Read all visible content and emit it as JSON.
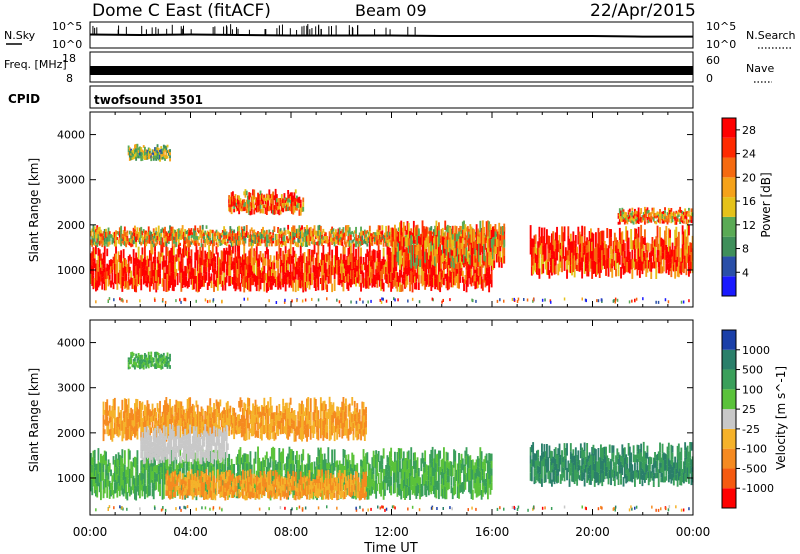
{
  "header": {
    "title": "Dome C East (fitACF)",
    "beam": "Beam 09",
    "date": "22/Apr/2015"
  },
  "colors": {
    "power_scale": [
      "#1a1aff",
      "#2a4fa8",
      "#3f8f5a",
      "#5aaa55",
      "#e5c21a",
      "#f5a21a",
      "#f56a10",
      "#ff2a00",
      "#ff0000"
    ],
    "velocity_scale": [
      "#ff0000",
      "#f55a10",
      "#f58a20",
      "#f5b22a",
      "#c8c8c8",
      "#5ac23a",
      "#3a9f5a",
      "#2a7f6a",
      "#1a3fa8"
    ],
    "gray_flag": "#c8c8c8"
  },
  "chart_data": [
    {
      "type": "line",
      "name": "noise-panel",
      "left_label": "N.Sky",
      "left_ticks": [
        "10^5",
        "10^0"
      ],
      "right_label": "N.Search",
      "right_ticks": [
        "10^5",
        "10^0"
      ],
      "series": [
        {
          "name": "N.Sky",
          "values": [
            2.6,
            2.5,
            2.6,
            2.5,
            2.4,
            2.4,
            2.4,
            2.3,
            2.3,
            2.3,
            2.3,
            2.2,
            2.2
          ]
        }
      ],
      "x": [
        0,
        2,
        4,
        6,
        8,
        10,
        12,
        14,
        16,
        18,
        20,
        22,
        24
      ],
      "ylim": [
        0,
        5
      ]
    },
    {
      "type": "line",
      "name": "freq-nave-panel",
      "left_label": "Freq. [MHz]",
      "left_ticks": [
        "18",
        "8"
      ],
      "right_label": "Nave",
      "right_ticks": [
        "60",
        "0"
      ],
      "series": [
        {
          "name": "Freq",
          "values": [
            10.4,
            10.4,
            10.4,
            10.4,
            10.4,
            10.4,
            10.4,
            10.4,
            10.4,
            10.4,
            10.4,
            10.4,
            10.4
          ]
        }
      ],
      "x": [
        0,
        2,
        4,
        6,
        8,
        10,
        12,
        14,
        16,
        18,
        20,
        22,
        24
      ],
      "ylim": [
        8,
        18
      ]
    },
    {
      "type": "heatmap",
      "name": "cpid-panel",
      "label": "CPID",
      "program": "twofsound 3501"
    },
    {
      "type": "heatmap",
      "name": "power-panel",
      "ylabel": "Slant Range [km]",
      "xlabel": "Time UT",
      "xlim": [
        0,
        24
      ],
      "ylim": [
        180,
        4500
      ],
      "x_ticks": [
        "00:00",
        "04:00",
        "08:00",
        "12:00",
        "16:00",
        "20:00",
        "00:00"
      ],
      "y_ticks": [
        1000,
        2000,
        3000,
        4000
      ],
      "colorbar_label": "Power [dB]",
      "colorbar_ticks": [
        4,
        8,
        12,
        16,
        20,
        24,
        28
      ],
      "colorbar_range": [
        0,
        30
      ],
      "blobs": [
        {
          "t0": 0.0,
          "t1": 16.0,
          "r0": 500,
          "r1": 1600,
          "value": 28
        },
        {
          "t0": 0.0,
          "t1": 16.5,
          "r0": 1500,
          "r1": 2000,
          "value": 18
        },
        {
          "t0": 1.5,
          "t1": 3.2,
          "r0": 3400,
          "r1": 3800,
          "value": 12
        },
        {
          "t0": 5.5,
          "t1": 8.5,
          "r0": 2200,
          "r1": 2800,
          "value": 22
        },
        {
          "t0": 12.0,
          "t1": 16.5,
          "r0": 1000,
          "r1": 2100,
          "value": 20
        },
        {
          "t0": 17.5,
          "t1": 24.0,
          "r0": 800,
          "r1": 2000,
          "value": 26
        },
        {
          "t0": 21.0,
          "t1": 24.0,
          "r0": 2000,
          "r1": 2400,
          "value": 20
        }
      ]
    },
    {
      "type": "heatmap",
      "name": "velocity-panel",
      "ylabel": "Slant Range [km]",
      "xlabel": "Time UT",
      "xlim": [
        0,
        24
      ],
      "ylim": [
        180,
        4500
      ],
      "x_ticks": [
        "00:00",
        "04:00",
        "08:00",
        "12:00",
        "16:00",
        "20:00",
        "00:00"
      ],
      "y_ticks": [
        1000,
        2000,
        3000,
        4000
      ],
      "colorbar_label": "Velocity [m s^-1]",
      "colorbar_ticks": [
        1000,
        500,
        100,
        25,
        -25,
        -100,
        -500,
        -1000
      ],
      "blobs": [
        {
          "t0": 0.0,
          "t1": 16.0,
          "r0": 500,
          "r1": 1700,
          "value": 100
        },
        {
          "t0": 3.0,
          "t1": 11.0,
          "r0": 500,
          "r1": 1200,
          "value": -100
        },
        {
          "t0": 0.5,
          "t1": 11.0,
          "r0": 1800,
          "r1": 2800,
          "value": -100
        },
        {
          "t0": 1.5,
          "t1": 3.2,
          "r0": 3400,
          "r1": 3800,
          "value": 100
        },
        {
          "t0": 17.5,
          "t1": 24.0,
          "r0": 800,
          "r1": 1800,
          "value": 500
        },
        {
          "t0": 2.0,
          "t1": 5.5,
          "r0": 1300,
          "r1": 2200,
          "value": 0
        }
      ]
    }
  ]
}
